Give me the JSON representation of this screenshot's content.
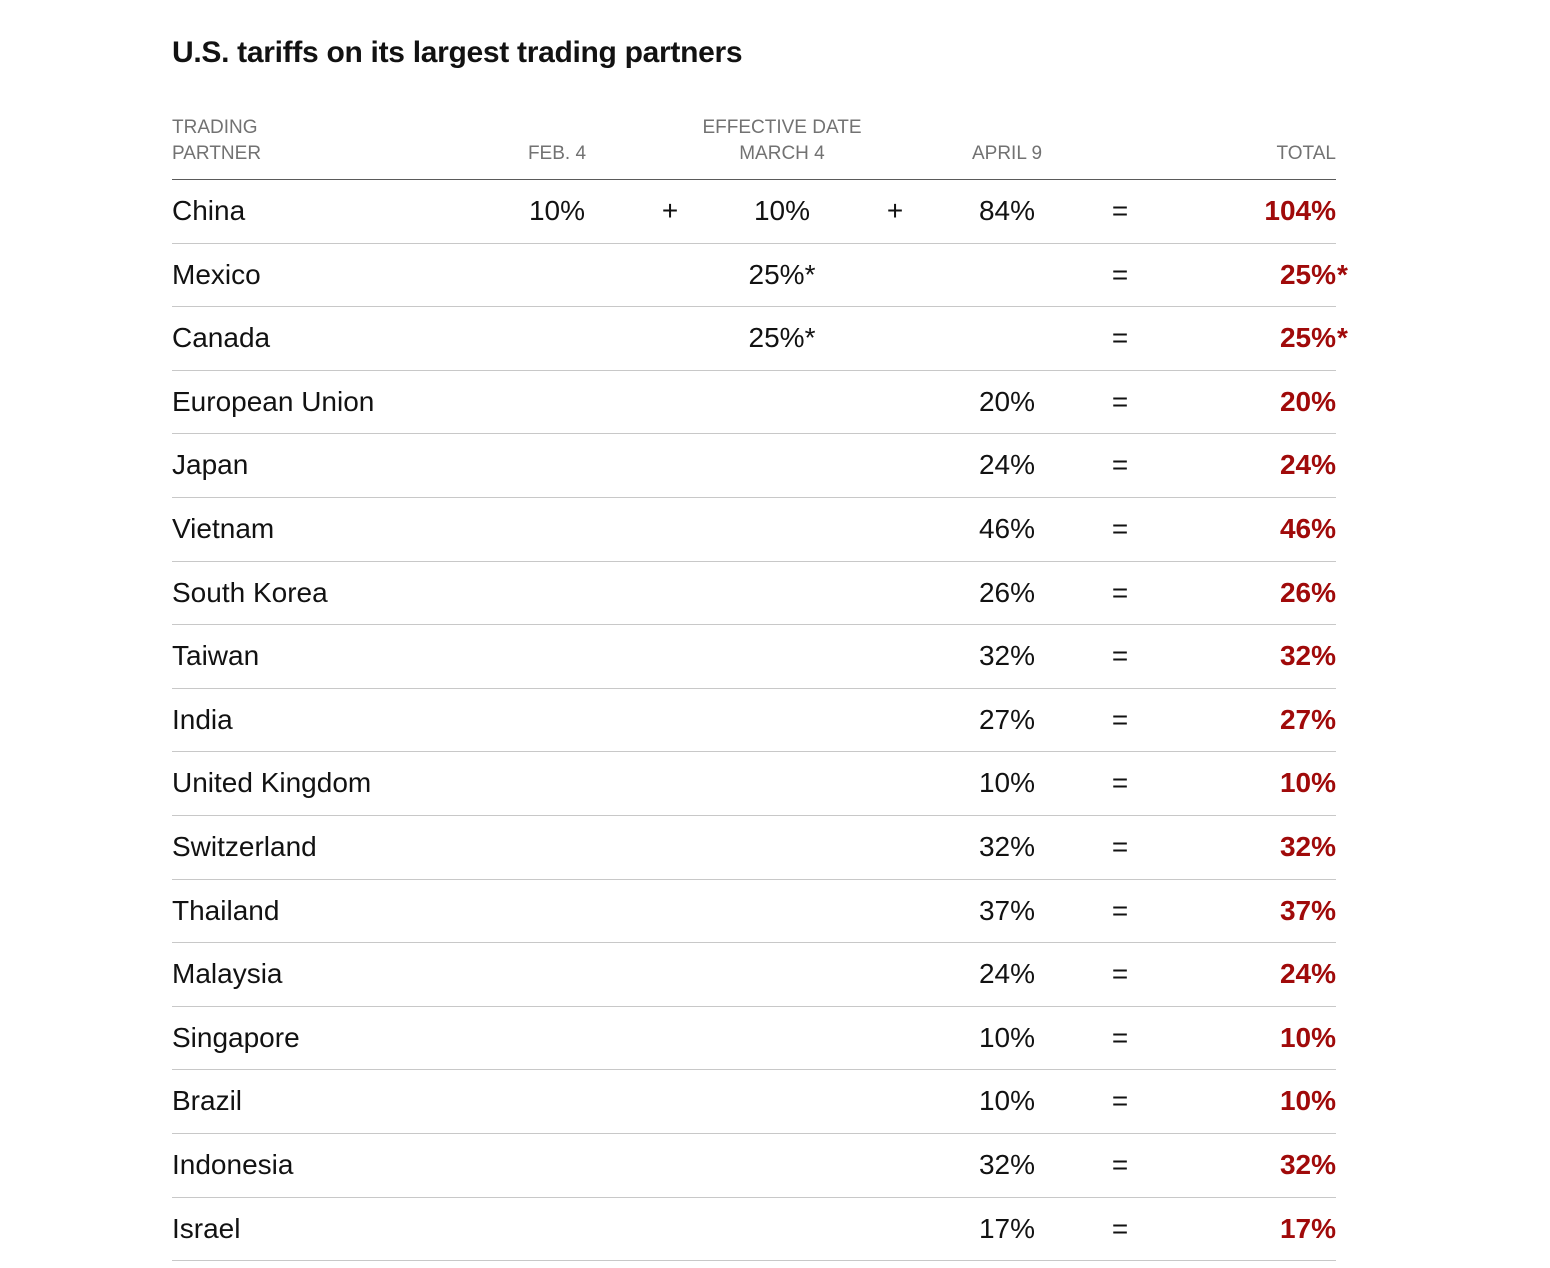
{
  "title": "U.S. tariffs on its largest trading partners",
  "colors": {
    "total_text": "#a00a0a",
    "header_text": "#727272",
    "body_text": "#121212"
  },
  "chart_data": {
    "type": "table",
    "headers": {
      "partner": "TRADING PARTNER",
      "group": "EFFECTIVE DATE",
      "feb": "FEB. 4",
      "march": "MARCH 4",
      "april": "APRIL 9",
      "total": "TOTAL"
    },
    "rows": [
      {
        "partner": "China",
        "feb": "10%",
        "op1": "+",
        "march": "10%",
        "op2": "+",
        "april": "84%",
        "eq": "=",
        "total": "104%",
        "total_note": ""
      },
      {
        "partner": "Mexico",
        "feb": "",
        "op1": "",
        "march": "25%*",
        "op2": "",
        "april": "",
        "eq": "=",
        "total": "25%",
        "total_note": "*"
      },
      {
        "partner": "Canada",
        "feb": "",
        "op1": "",
        "march": "25%*",
        "op2": "",
        "april": "",
        "eq": "=",
        "total": "25%",
        "total_note": "*"
      },
      {
        "partner": "European Union",
        "feb": "",
        "op1": "",
        "march": "",
        "op2": "",
        "april": "20%",
        "eq": "=",
        "total": "20%",
        "total_note": ""
      },
      {
        "partner": "Japan",
        "feb": "",
        "op1": "",
        "march": "",
        "op2": "",
        "april": "24%",
        "eq": "=",
        "total": "24%",
        "total_note": ""
      },
      {
        "partner": "Vietnam",
        "feb": "",
        "op1": "",
        "march": "",
        "op2": "",
        "april": "46%",
        "eq": "=",
        "total": "46%",
        "total_note": ""
      },
      {
        "partner": "South Korea",
        "feb": "",
        "op1": "",
        "march": "",
        "op2": "",
        "april": "26%",
        "eq": "=",
        "total": "26%",
        "total_note": ""
      },
      {
        "partner": "Taiwan",
        "feb": "",
        "op1": "",
        "march": "",
        "op2": "",
        "april": "32%",
        "eq": "=",
        "total": "32%",
        "total_note": ""
      },
      {
        "partner": "India",
        "feb": "",
        "op1": "",
        "march": "",
        "op2": "",
        "april": "27%",
        "eq": "=",
        "total": "27%",
        "total_note": ""
      },
      {
        "partner": "United Kingdom",
        "feb": "",
        "op1": "",
        "march": "",
        "op2": "",
        "april": "10%",
        "eq": "=",
        "total": "10%",
        "total_note": ""
      },
      {
        "partner": "Switzerland",
        "feb": "",
        "op1": "",
        "march": "",
        "op2": "",
        "april": "32%",
        "eq": "=",
        "total": "32%",
        "total_note": ""
      },
      {
        "partner": "Thailand",
        "feb": "",
        "op1": "",
        "march": "",
        "op2": "",
        "april": "37%",
        "eq": "=",
        "total": "37%",
        "total_note": ""
      },
      {
        "partner": "Malaysia",
        "feb": "",
        "op1": "",
        "march": "",
        "op2": "",
        "april": "24%",
        "eq": "=",
        "total": "24%",
        "total_note": ""
      },
      {
        "partner": "Singapore",
        "feb": "",
        "op1": "",
        "march": "",
        "op2": "",
        "april": "10%",
        "eq": "=",
        "total": "10%",
        "total_note": ""
      },
      {
        "partner": "Brazil",
        "feb": "",
        "op1": "",
        "march": "",
        "op2": "",
        "april": "10%",
        "eq": "=",
        "total": "10%",
        "total_note": ""
      },
      {
        "partner": "Indonesia",
        "feb": "",
        "op1": "",
        "march": "",
        "op2": "",
        "april": "32%",
        "eq": "=",
        "total": "32%",
        "total_note": ""
      },
      {
        "partner": "Israel",
        "feb": "",
        "op1": "",
        "march": "",
        "op2": "",
        "april": "17%",
        "eq": "=",
        "total": "17%",
        "total_note": ""
      }
    ]
  }
}
